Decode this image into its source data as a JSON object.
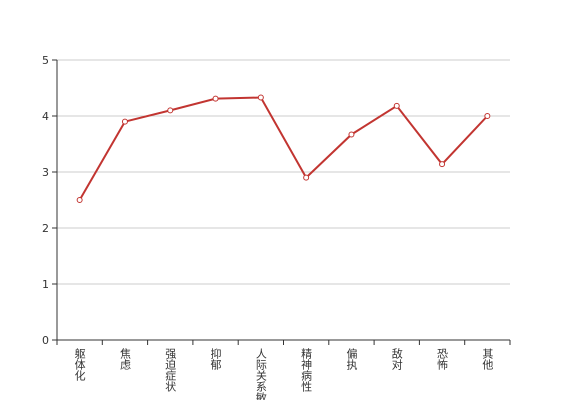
{
  "chart_data": {
    "type": "line",
    "categories": [
      "躯体化",
      "焦虑",
      "强迫症状",
      "抑郁",
      "人际关系敏感",
      "精神病性",
      "偏执",
      "敌对",
      "恐怖",
      "其他"
    ],
    "values": [
      2.5,
      3.9,
      4.1,
      4.31,
      4.33,
      2.9,
      3.67,
      4.18,
      3.14,
      4.0
    ],
    "color": "#c23531",
    "ylim": [
      0,
      5
    ],
    "yticks": [
      0,
      1,
      2,
      3,
      4,
      5
    ],
    "grid": true
  }
}
